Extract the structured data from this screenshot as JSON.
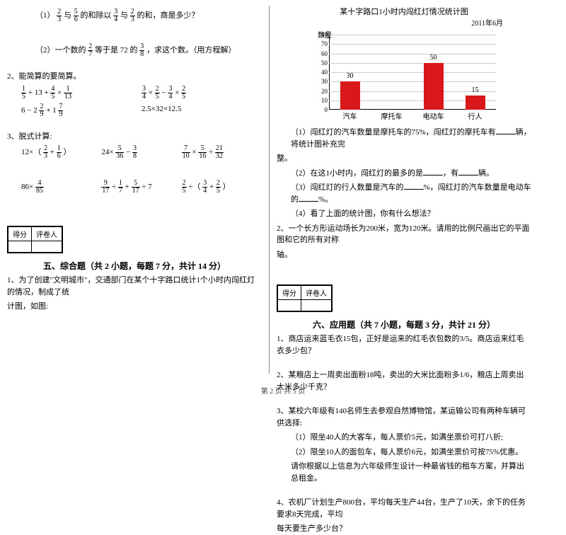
{
  "left": {
    "q1_1": "（1）",
    "q1_1_text_a": "与",
    "q1_1_text_b": "的和除以",
    "q1_1_text_c": "与",
    "q1_1_text_d": "的和，商是多少？",
    "q1_2": "（2）一个数的",
    "q1_2_mid": "等于是 72 的",
    "q1_2_end": "，求这个数。（用方程解）",
    "p2": "2、能简算的要简算。",
    "calc_a1_pre": " + 13 + ",
    "calc_a1_mid": " × ",
    "calc_a2_pre": "6 − 2",
    "calc_a2_mid": " + 1",
    "calc_b1": " × ",
    "calc_b1_mid": " − ",
    "calc_b1_mid2": " × ",
    "calc_b2": "2.5×32×12.5",
    "p3": "3、脱式计算:",
    "c3_a": "12×（",
    "c3_a_mid": " + ",
    "c3_a_end": "）",
    "c3_b_pre": "24×",
    "c3_b_mid": " − ",
    "c3_c_mid": " × ",
    "c3_c_mid2": " ÷ ",
    "c4_a": "86×",
    "c4_b_mid": " ÷ ",
    "c4_b_mid2": " + ",
    "c4_b_mid3": " ÷ 7",
    "c4_c_mid": " ÷（",
    "c4_c_mid2": " + ",
    "c4_c_end": "）",
    "score_a": "得分",
    "score_b": "评卷人",
    "sec5": "五、综合题（共 2 小题，每题 7 分，共计 14 分）",
    "p5_1a": "1、为了创建\"文明城市\"，交通部门在某个十字路口统计1个小时内闯红灯的情况，制成了统",
    "p5_1b": "计图，如图:"
  },
  "right": {
    "chart": {
      "title": "某十字路口1小时内闯红灯情况统计图",
      "subtitle": "2011年6月",
      "ylabel": "数量",
      "categories": [
        "汽车",
        "摩托车",
        "电动车",
        "行人"
      ],
      "values": [
        30,
        null,
        50,
        15
      ],
      "bar_labels": [
        "30",
        "",
        "50",
        "15"
      ],
      "ymax": 80,
      "ytick_step": 10,
      "bar_color": "#d8181a",
      "grid_color": "#cccccc",
      "background": "#ffffff"
    },
    "q1_a": "（1）闯红灯的汽车数量是摩托车的75%，闯红灯的摩托车有",
    "q1_b": "辆，将统计图补充完",
    "q1_c": "整。",
    "q2_a": "（2）在这1小时内，闯红灯的最多的是",
    "q2_b": "，有",
    "q2_c": "辆。",
    "q3_a": "（3）闯红灯的行人数量是汽车的",
    "q3_b": "%，闯红灯的汽车数量是电动车的",
    "q3_c": "%。",
    "q4": "（4）看了上面的统计图，你有什么想法？",
    "p2a": "2、一个长方形运动场长为200米，宽为120米。请用的比例尺画出它的平面图和它的所有对称",
    "p2b": "轴。",
    "score_a": "得分",
    "score_b": "评卷人",
    "sec6": "六、应用题（共 7 小题，每题 3 分，共计 21 分）",
    "a1": "1、商店运来蓝毛衣15包，正好是运来的红毛衣包数的3/5。商店运来红毛衣多少包？",
    "a2": "2、某粮店上一周卖出面粉18吨，卖出的大米比面粉多1/6，粮店上周卖出大米多少千克？",
    "a3a": "3、某校六年级有140名师生去参观自然博物馆，某运输公司有两种车辆可供选择:",
    "a3b": "（1）限坐40人的大客车，每人票价5元，如满坐票价可打八折;",
    "a3c": "（2）限坐10人的面包车，每人票价6元，如满坐票价可按75%优惠。",
    "a3d": "请你根据以上信息为六年级师生设计一种最省钱的租车方案，并算出总租金。",
    "a4a": "4、农机厂计划生产800台，平均每天生产44台，生产了10天，余下的任务要求8天完成，平均",
    "a4b": "每天要生产多少台？"
  },
  "footer": "第 2 页 共 5 页"
}
